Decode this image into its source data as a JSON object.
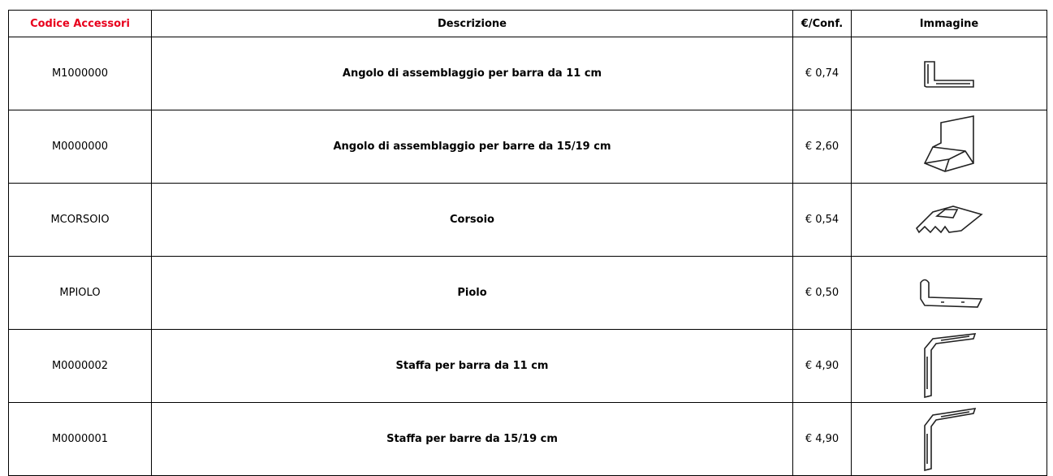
{
  "table": {
    "header": [
      "Codice Accessori",
      "Descrizione",
      "€/Conf.",
      "Immagine"
    ],
    "rows": [
      [
        "M1000000",
        "Angolo di assemblaggio per barra da 11 cm",
        "€ 0,74"
      ],
      [
        "M0000000",
        "Angolo di assemblaggio per barre da 15/19 cm",
        "€ 2,60"
      ],
      [
        "MCORSOIO",
        "Corsoio",
        "€ 0,54"
      ],
      [
        "MPIOLO",
        "Piolo",
        "€ 0,50"
      ],
      [
        "M0000002",
        "Staffa per barra da 11 cm",
        "€ 4,90"
      ],
      [
        "M0000001",
        "Staffa per barre da 15/19 cm",
        "€ 4,90"
      ]
    ]
  }
}
